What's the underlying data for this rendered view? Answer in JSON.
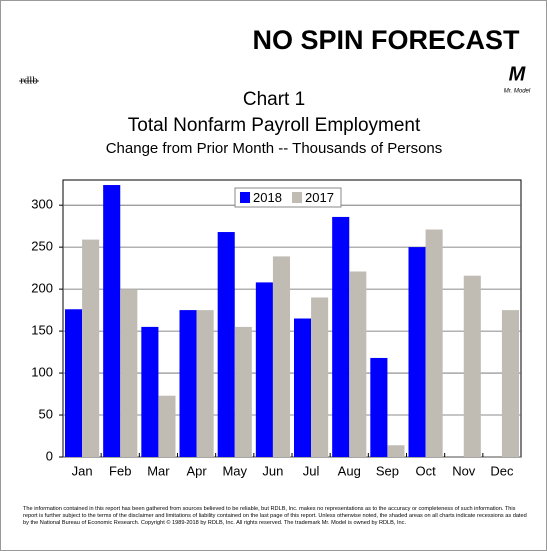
{
  "header": {
    "brand": "NO SPIN FORECAST",
    "left_logo": "rdlb",
    "right_logo": "M",
    "right_logo_caption": "Mr. Model"
  },
  "chart_data": {
    "type": "bar",
    "title": "Chart 1",
    "subtitle": "Total Nonfarm Payroll Employment",
    "axis_note": "Change from Prior Month -- Thousands of Persons",
    "categories": [
      "Jan",
      "Feb",
      "Mar",
      "Apr",
      "May",
      "Jun",
      "Jul",
      "Aug",
      "Sep",
      "Oct",
      "Nov",
      "Dec"
    ],
    "series": [
      {
        "name": "2018",
        "color": "#0000ff",
        "values": [
          176,
          324,
          155,
          175,
          268,
          208,
          165,
          286,
          118,
          250,
          null,
          null
        ]
      },
      {
        "name": "2017",
        "color": "#c0bcb4",
        "values": [
          259,
          200,
          73,
          175,
          155,
          239,
          190,
          221,
          14,
          271,
          216,
          175
        ]
      }
    ],
    "ylim": [
      0,
      330
    ],
    "yticks": [
      0,
      50,
      100,
      150,
      200,
      250,
      300
    ],
    "grid": true,
    "legend": "top"
  },
  "footer": "The information contained in this report has been gathered from sources believed to be reliable, but RDLB, Inc. makes no representations as to the accuracy or completeness of such information. This report is further subject to the terms of the disclaimer and limitations of liability contained on the last page of this report. Unless otherwise noted, the shaded areas on all charts indicate recessions as dated by the National Bureau of Economic Research. Copyright © 1989-2018 by RDLB, Inc. All rights reserved. The trademark Mr. Model is owned by RDLB, Inc."
}
